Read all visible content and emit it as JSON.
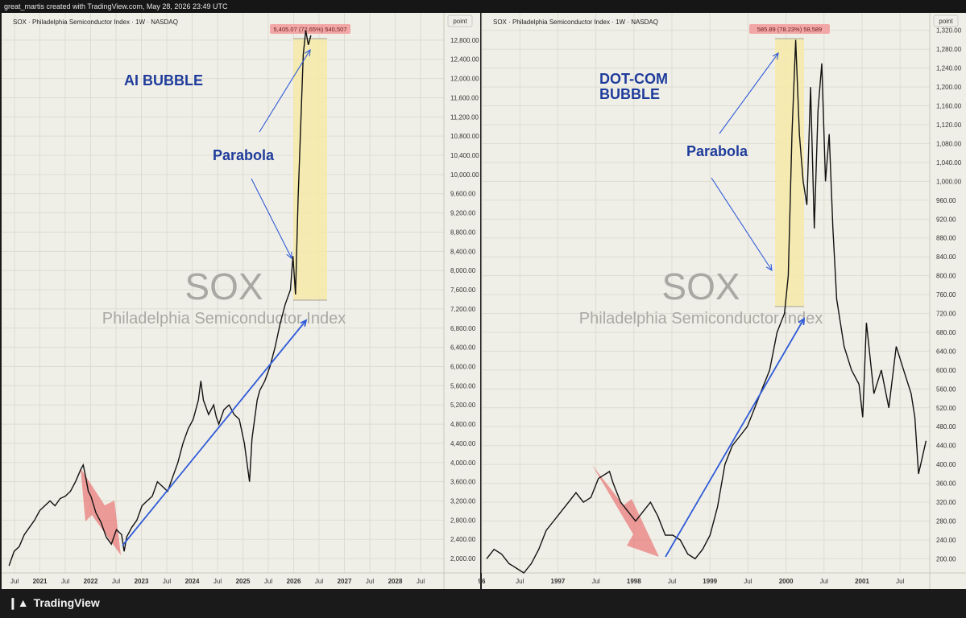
{
  "header_text": "great_martis created with TradingView.com, May 28, 2026 23:49 UTC",
  "footer_brand": "TradingView",
  "colors": {
    "background": "#f0efe7",
    "line": "#111111",
    "blue_arrow": "#2f5bd8",
    "red_arrow": "#e86b6b",
    "highlight": "#f6eaa8",
    "measure_badge": "#f2a7a7",
    "annotation_text": "#1f3c9c"
  },
  "chart_data": [
    {
      "type": "line",
      "title": "SOX · Philadelphia Semiconductor Index · 1W · NASDAQ",
      "watermark_title": "SOX",
      "watermark_subtitle": "Philadelphia Semiconductor Index",
      "unit_label": "point",
      "y_ticks": [
        "12,800.00",
        "12,400.00",
        "12,000.00",
        "11,600.00",
        "11,200.00",
        "10,800.00",
        "10,400.00",
        "10,000.00",
        "9,600.00",
        "9,200.00",
        "8,800.00",
        "8,400.00",
        "8,000.00",
        "7,600.00",
        "7,200.00",
        "6,800.00",
        "6,400.00",
        "6,000.00",
        "5,600.00",
        "5,200.00",
        "4,800.00",
        "4,400.00",
        "4,000.00",
        "3,600.00",
        "3,200.00",
        "2,800.00",
        "2,400.00",
        "2,000.00"
      ],
      "x_ticks": [
        "Jul",
        "2021",
        "Jul",
        "2022",
        "Jul",
        "2023",
        "Jul",
        "2024",
        "Jul",
        "2025",
        "Jul",
        "2026",
        "Jul",
        "2027",
        "Jul",
        "2028",
        "Jul"
      ],
      "ylim": [
        1700,
        13200
      ],
      "xlim": [
        2020.45,
        2029.0
      ],
      "x": [
        2020.5,
        2020.6,
        2020.7,
        2020.8,
        2020.9,
        2021.0,
        2021.1,
        2021.2,
        2021.3,
        2021.4,
        2021.5,
        2021.6,
        2021.7,
        2021.8,
        2021.9,
        2021.95,
        2022.0,
        2022.05,
        2022.1,
        2022.2,
        2022.3,
        2022.4,
        2022.5,
        2022.6,
        2022.7,
        2022.75,
        2022.8,
        2022.9,
        2023.0,
        2023.1,
        2023.2,
        2023.3,
        2023.4,
        2023.5,
        2023.6,
        2023.7,
        2023.8,
        2023.9,
        2024.0,
        2024.1,
        2024.2,
        2024.25,
        2024.3,
        2024.4,
        2024.5,
        2024.55,
        2024.6,
        2024.7,
        2024.8,
        2024.9,
        2025.0,
        2025.1,
        2025.2,
        2025.25,
        2025.3,
        2025.35,
        2025.4,
        2025.5,
        2025.6,
        2025.7,
        2025.8,
        2025.9,
        2026.0,
        2026.05,
        2026.1,
        2026.15,
        2026.2,
        2026.25,
        2026.3,
        2026.35,
        2026.4
      ],
      "y": [
        1850,
        2150,
        2250,
        2500,
        2650,
        2800,
        3000,
        3100,
        3200,
        3100,
        3250,
        3300,
        3400,
        3600,
        3850,
        3950,
        3700,
        3400,
        3300,
        2950,
        2750,
        2450,
        2300,
        2600,
        2500,
        2150,
        2450,
        2650,
        2800,
        3100,
        3200,
        3300,
        3600,
        3500,
        3400,
        3700,
        4000,
        4400,
        4700,
        4900,
        5300,
        5700,
        5300,
        5000,
        5200,
        4950,
        4800,
        5100,
        5200,
        5000,
        4900,
        4400,
        3600,
        4500,
        4900,
        5300,
        5500,
        5700,
        6000,
        6400,
        6900,
        7300,
        7600,
        8300,
        7500,
        9500,
        11000,
        12500,
        13000,
        12700,
        12900
      ],
      "highlight": {
        "x0": 2025.99,
        "x1": 2026.47,
        "y0": 7500,
        "y1": 12980
      },
      "measure_label": "5,405.07 (72.65%) 540,507",
      "annotations": {
        "headline": "AI BUBBLE",
        "note": "Parabola"
      }
    },
    {
      "type": "line",
      "title": "SOX · Philadelphia Semiconductor Index · 1W · NASDAQ",
      "watermark_title": "SOX",
      "watermark_subtitle": "Philadelphia Semiconductor Index",
      "unit_label": "point",
      "y_ticks": [
        "1,320.00",
        "1,280.00",
        "1,240.00",
        "1,200.00",
        "1,160.00",
        "1,120.00",
        "1,080.00",
        "1,040.00",
        "1,000.00",
        "960.00",
        "920.00",
        "880.00",
        "840.00",
        "800.00",
        "760.00",
        "720.00",
        "680.00",
        "640.00",
        "600.00",
        "560.00",
        "520.00",
        "480.00",
        "440.00",
        "400.00",
        "360.00",
        "320.00",
        "280.00",
        "240.00",
        "200.00"
      ],
      "x_ticks": [
        "96",
        "Jul",
        "1997",
        "Jul",
        "1998",
        "Jul",
        "1999",
        "Jul",
        "2000",
        "Jul",
        "2001",
        "Jul"
      ],
      "ylim": [
        170,
        1340
      ],
      "xlim": [
        1996.0,
        2001.95
      ],
      "x": [
        1996.0,
        1996.1,
        1996.2,
        1996.3,
        1996.4,
        1996.5,
        1996.6,
        1996.7,
        1996.8,
        1996.9,
        1997.0,
        1997.1,
        1997.2,
        1997.3,
        1997.4,
        1997.5,
        1997.6,
        1997.65,
        1997.7,
        1997.8,
        1997.9,
        1998.0,
        1998.1,
        1998.2,
        1998.3,
        1998.4,
        1998.5,
        1998.6,
        1998.7,
        1998.8,
        1998.9,
        1999.0,
        1999.1,
        1999.2,
        1999.3,
        1999.4,
        1999.5,
        1999.6,
        1999.7,
        1999.8,
        1999.9,
        2000.0,
        2000.05,
        2000.1,
        2000.15,
        2000.2,
        2000.25,
        2000.3,
        2000.35,
        2000.4,
        2000.45,
        2000.5,
        2000.55,
        2000.6,
        2000.65,
        2000.7,
        2000.75,
        2000.8,
        2000.9,
        2001.0,
        2001.05,
        2001.1,
        2001.2,
        2001.3,
        2001.4,
        2001.5,
        2001.6,
        2001.7,
        2001.75,
        2001.8,
        2001.9
      ],
      "y": [
        200,
        220,
        210,
        190,
        180,
        170,
        190,
        220,
        260,
        280,
        300,
        320,
        340,
        320,
        330,
        370,
        380,
        385,
        360,
        320,
        300,
        280,
        300,
        320,
        290,
        250,
        250,
        240,
        210,
        200,
        220,
        250,
        310,
        400,
        440,
        460,
        480,
        520,
        560,
        600,
        680,
        720,
        800,
        1100,
        1300,
        1100,
        1000,
        950,
        1200,
        900,
        1150,
        1250,
        1000,
        1100,
        900,
        750,
        700,
        650,
        600,
        570,
        500,
        700,
        550,
        600,
        520,
        650,
        600,
        550,
        500,
        380,
        450
      ]
    }
  ]
}
